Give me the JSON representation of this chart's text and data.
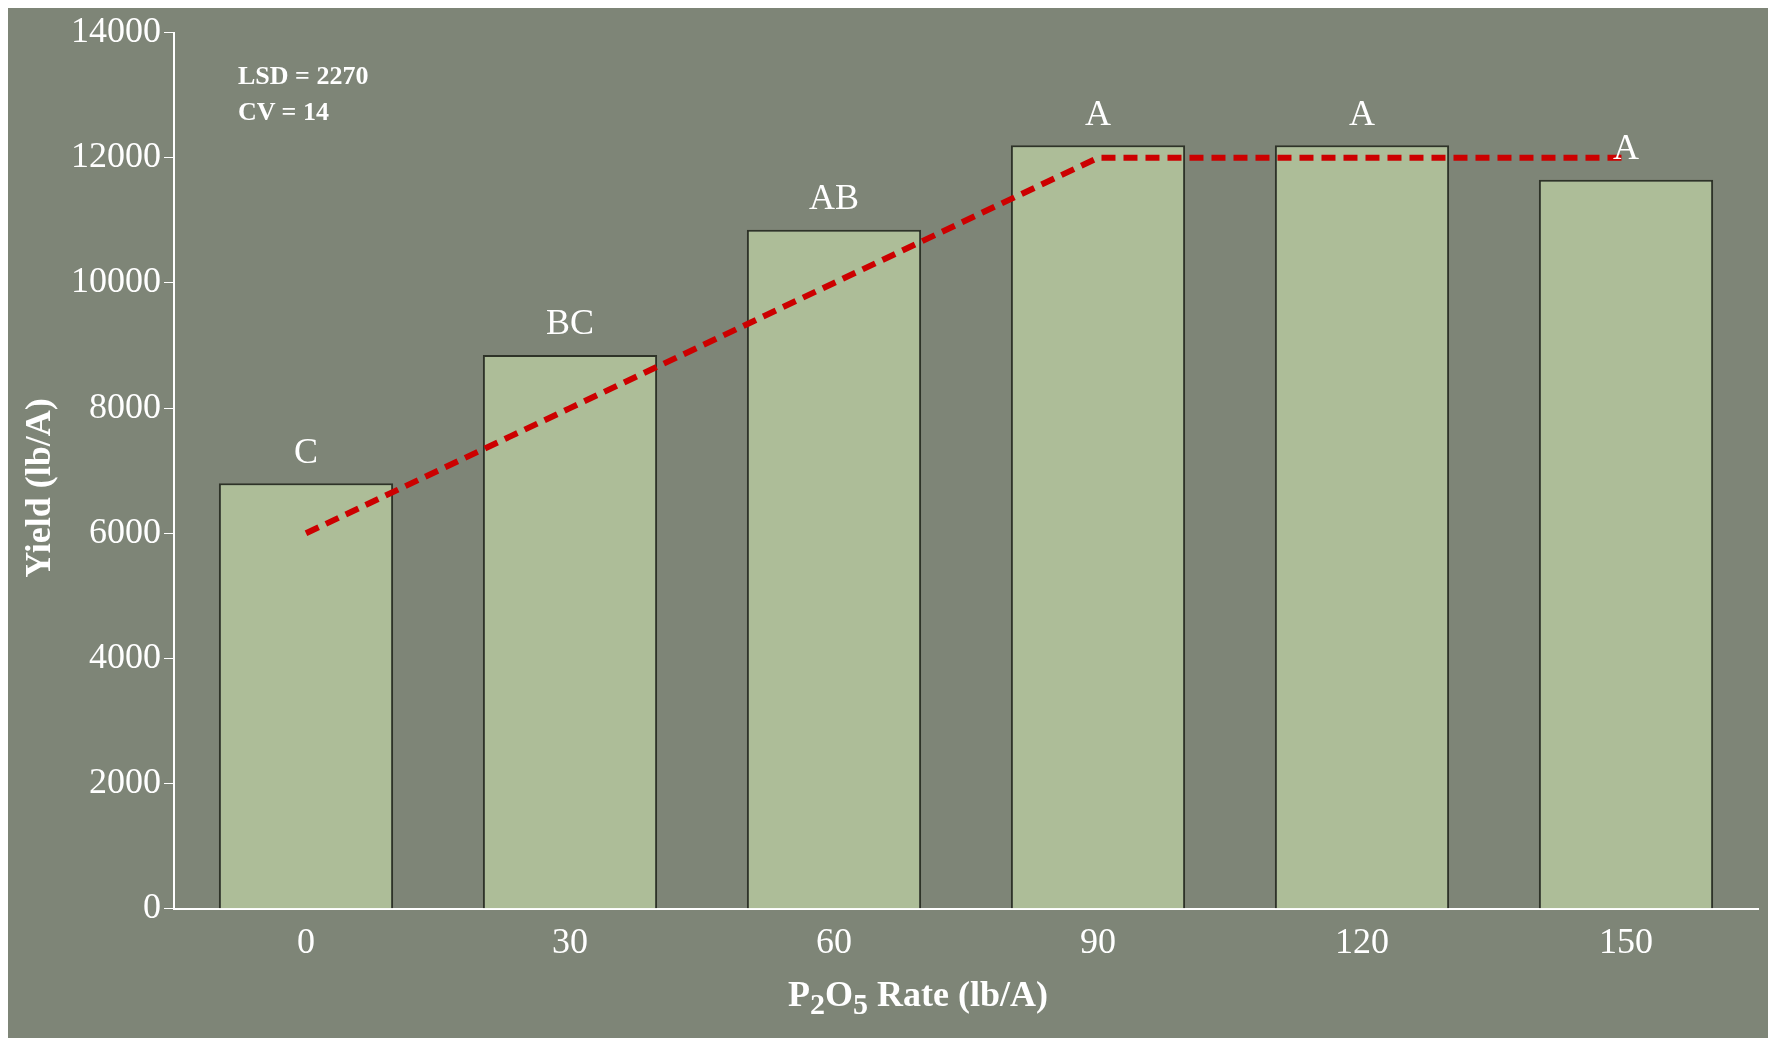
{
  "chart_data": {
    "type": "bar",
    "xlabel": "P$_{2}$O$_{5}$ Rate (lb/A)",
    "ylabel": "Yield (lb/A)",
    "categories": [
      "0",
      "30",
      "60",
      "90",
      "120",
      "150"
    ],
    "series": [
      {
        "color": "#adbd98",
        "values": [
          6800,
          8850,
          10850,
          12200,
          12200,
          11650
        ]
      },
      {
        "type": "line",
        "color": "#cc0000",
        "line_style": "dashed",
        "values": [
          6000,
          8000,
          10000,
          12000,
          12000,
          12000
        ]
      }
    ],
    "ylim": [
      0,
      14000
    ],
    "yticks": [
      0,
      2000,
      4000,
      6000,
      8000,
      10000,
      12000,
      14000
    ],
    "grid": false,
    "legend": false,
    "annotations": [
      "LSD = 2270",
      "CV = 14",
      {
        "text": "C",
        "x": "0",
        "y": 6800
      },
      {
        "text": "BC",
        "x": "30",
        "y": 8850
      },
      {
        "text": "AB",
        "x": "60",
        "y": 10850
      },
      {
        "text": "A",
        "x": "90",
        "y": 12200
      },
      {
        "text": "A",
        "x": "120",
        "y": 12200
      },
      {
        "text": "A",
        "x": "150",
        "y": 11650
      }
    ]
  }
}
